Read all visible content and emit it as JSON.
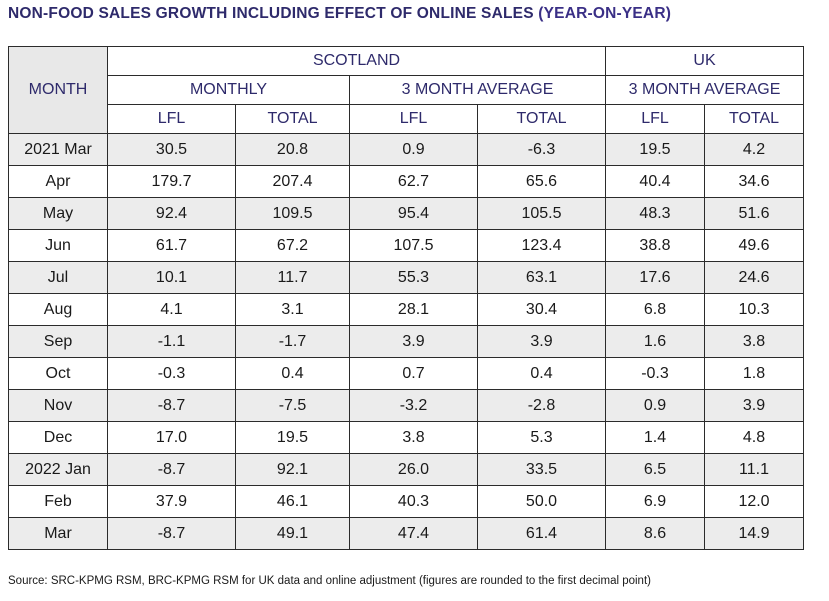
{
  "title": {
    "main": "NON-FOOD SALES GROWTH INCLUDING EFFECT OF ONLINE SALES ",
    "emphasis": "(YEAR-ON-YEAR)"
  },
  "table": {
    "month_header": "MONTH",
    "region_scotland": "SCOTLAND",
    "region_uk": "UK",
    "group_monthly": "MONTHLY",
    "group_3m_scotland": "3 MONTH AVERAGE",
    "group_3m_uk": "3 MONTH AVERAGE",
    "columns": [
      "LFL",
      "TOTAL",
      "LFL",
      "TOTAL",
      "LFL",
      "TOTAL"
    ],
    "rows": [
      {
        "month": "2021 Mar",
        "values": [
          "30.5",
          "20.8",
          "0.9",
          "-6.3",
          "19.5",
          "4.2"
        ]
      },
      {
        "month": "Apr",
        "values": [
          "179.7",
          "207.4",
          "62.7",
          "65.6",
          "40.4",
          "34.6"
        ]
      },
      {
        "month": "May",
        "values": [
          "92.4",
          "109.5",
          "95.4",
          "105.5",
          "48.3",
          "51.6"
        ]
      },
      {
        "month": "Jun",
        "values": [
          "61.7",
          "67.2",
          "107.5",
          "123.4",
          "38.8",
          "49.6"
        ]
      },
      {
        "month": "Jul",
        "values": [
          "10.1",
          "11.7",
          "55.3",
          "63.1",
          "17.6",
          "24.6"
        ]
      },
      {
        "month": "Aug",
        "values": [
          "4.1",
          "3.1",
          "28.1",
          "30.4",
          "6.8",
          "10.3"
        ]
      },
      {
        "month": "Sep",
        "values": [
          "-1.1",
          "-1.7",
          "3.9",
          "3.9",
          "1.6",
          "3.8"
        ]
      },
      {
        "month": "Oct",
        "values": [
          "-0.3",
          "0.4",
          "0.7",
          "0.4",
          "-0.3",
          "1.8"
        ]
      },
      {
        "month": "Nov",
        "values": [
          "-8.7",
          "-7.5",
          "-3.2",
          "-2.8",
          "0.9",
          "3.9"
        ]
      },
      {
        "month": "Dec",
        "values": [
          "17.0",
          "19.5",
          "3.8",
          "5.3",
          "1.4",
          "4.8"
        ]
      },
      {
        "month": "2022 Jan",
        "values": [
          "-8.7",
          "92.1",
          "26.0",
          "33.5",
          "6.5",
          "11.1"
        ]
      },
      {
        "month": "Feb",
        "values": [
          "37.9",
          "46.1",
          "40.3",
          "50.0",
          "6.9",
          "12.0"
        ]
      },
      {
        "month": "Mar",
        "values": [
          "-8.7",
          "49.1",
          "47.4",
          "61.4",
          "8.6",
          "14.9"
        ]
      }
    ]
  },
  "source": "Source: SRC-KPMG RSM, BRC-KPMG RSM for UK data and online adjustment (figures are rounded to the first decimal point)"
}
